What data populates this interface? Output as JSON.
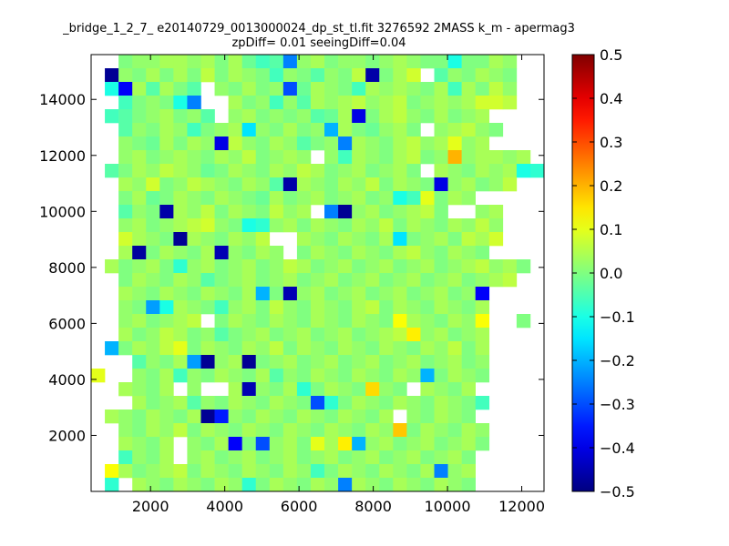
{
  "chart_data": {
    "type": "heatmap",
    "title": "_bridge_1_2_7_ e20140729_0013000024_dp_st_tl.fit 3276592 2MASS k_m - apermag3",
    "subtitle": "zpDiff= 0.01 seeingDiff=0.04",
    "xlabel": "",
    "ylabel": "",
    "x_ticks": [
      2000,
      4000,
      6000,
      8000,
      10000,
      12000
    ],
    "y_ticks": [
      2000,
      4000,
      6000,
      8000,
      10000,
      12000,
      14000
    ],
    "xlim": [
      400,
      12600
    ],
    "ylim": [
      0,
      15600
    ],
    "grid": false,
    "colorbar": {
      "range": [
        -0.5,
        0.5
      ],
      "ticks": [
        -0.5,
        -0.4,
        -0.3,
        -0.2,
        -0.1,
        0.0,
        0.1,
        0.2,
        0.3,
        0.4,
        0.5
      ],
      "tick_labels": [
        "−0.5",
        "−0.4",
        "−0.3",
        "−0.2",
        "−0.1",
        "0.0",
        "0.1",
        "0.2",
        "0.3",
        "0.4",
        "0.5"
      ],
      "colormap": "jet"
    },
    "grid_bins": {
      "x_edges": [
        400,
        12600
      ],
      "y_edges": [
        0,
        15600
      ],
      "nx": 33,
      "ny": 32
    },
    "rows_note": "rows listed from top (y=15600) to bottom (y=0); null = empty bin",
    "cells": [
      [
        null,
        null,
        0.0,
        0.02,
        0.02,
        0.04,
        0.04,
        0.02,
        0.04,
        0.0,
        0.04,
        -0.02,
        -0.06,
        -0.04,
        -0.25,
        0.02,
        0.04,
        0.0,
        0.02,
        0.02,
        0.0,
        0.02,
        0.04,
        0.02,
        0.0,
        0.0,
        -0.1,
        0.0,
        0.0,
        0.04,
        0.02,
        null,
        null
      ],
      [
        null,
        -0.48,
        0.02,
        0.0,
        0.04,
        0.0,
        0.04,
        0.0,
        0.06,
        0.0,
        0.04,
        0.02,
        0.0,
        -0.06,
        0.02,
        0.0,
        -0.04,
        0.02,
        0.0,
        0.06,
        -0.46,
        0.0,
        0.04,
        0.08,
        null,
        -0.04,
        0.02,
        0.0,
        0.04,
        0.02,
        0.0,
        null,
        null
      ],
      [
        null,
        -0.1,
        -0.38,
        0.04,
        -0.04,
        0.04,
        0.0,
        -0.04,
        null,
        0.02,
        0.0,
        0.04,
        0.0,
        0.02,
        -0.3,
        -0.02,
        0.04,
        0.02,
        0.0,
        -0.06,
        0.04,
        0.02,
        0.04,
        0.02,
        0.0,
        0.04,
        -0.06,
        0.04,
        0.0,
        0.06,
        0.02,
        null,
        null
      ],
      [
        null,
        null,
        -0.06,
        0.0,
        0.02,
        0.0,
        -0.1,
        -0.25,
        null,
        null,
        0.04,
        0.0,
        0.02,
        -0.06,
        0.02,
        -0.04,
        0.04,
        0.02,
        0.04,
        0.06,
        0.02,
        0.04,
        0.06,
        0.0,
        0.02,
        0.04,
        0.02,
        0.04,
        0.08,
        0.08,
        0.06,
        null,
        null
      ],
      [
        null,
        -0.06,
        -0.04,
        0.0,
        0.02,
        0.04,
        0.0,
        0.02,
        -0.04,
        null,
        0.02,
        0.04,
        0.0,
        0.02,
        0.0,
        0.02,
        -0.04,
        -0.02,
        0.04,
        -0.4,
        0.0,
        0.04,
        0.06,
        0.02,
        0.0,
        0.04,
        0.0,
        0.02,
        0.04,
        null,
        null,
        null,
        null
      ],
      [
        null,
        null,
        -0.04,
        0.02,
        0.0,
        0.04,
        0.02,
        -0.06,
        0.0,
        0.02,
        0.04,
        -0.15,
        0.02,
        0.0,
        0.04,
        0.0,
        0.02,
        -0.2,
        0.04,
        0.0,
        -0.02,
        0.02,
        0.04,
        0.0,
        null,
        0.02,
        0.04,
        0.06,
        0.02,
        0.0,
        null,
        null,
        null
      ],
      [
        null,
        null,
        0.02,
        0.0,
        -0.02,
        0.04,
        0.0,
        0.04,
        0.02,
        -0.4,
        0.06,
        0.02,
        0.0,
        0.04,
        0.02,
        -0.04,
        0.0,
        0.02,
        -0.25,
        0.04,
        0.02,
        0.0,
        0.04,
        0.06,
        0.02,
        0.04,
        0.1,
        0.02,
        0.04,
        null,
        null,
        null,
        null
      ],
      [
        null,
        null,
        0.02,
        0.04,
        0.0,
        0.02,
        0.04,
        0.02,
        0.0,
        0.04,
        0.02,
        0.06,
        0.0,
        0.02,
        0.04,
        0.02,
        null,
        0.02,
        -0.06,
        0.04,
        0.02,
        0.0,
        0.04,
        0.06,
        0.0,
        0.02,
        0.2,
        0.02,
        0.04,
        0.04,
        0.02,
        0.04,
        null
      ],
      [
        null,
        -0.04,
        0.0,
        0.04,
        0.02,
        0.06,
        0.04,
        0.02,
        -0.02,
        0.0,
        0.04,
        0.02,
        0.0,
        0.04,
        0.02,
        0.06,
        0.04,
        0.0,
        0.02,
        0.04,
        0.0,
        0.02,
        0.04,
        0.0,
        null,
        0.04,
        0.02,
        0.0,
        0.04,
        0.02,
        0.04,
        -0.1,
        -0.08
      ],
      [
        null,
        null,
        0.04,
        0.02,
        0.08,
        0.0,
        0.02,
        0.06,
        0.04,
        0.02,
        0.0,
        0.04,
        0.02,
        -0.04,
        -0.46,
        0.04,
        0.02,
        0.0,
        0.04,
        0.02,
        0.06,
        0.0,
        0.04,
        0.02,
        0.0,
        -0.4,
        0.02,
        0.04,
        0.0,
        0.02,
        0.06,
        null,
        null
      ],
      [
        null,
        null,
        0.0,
        0.04,
        -0.02,
        0.0,
        0.04,
        0.02,
        0.0,
        0.04,
        0.02,
        0.0,
        -0.02,
        0.04,
        0.0,
        0.02,
        0.04,
        0.0,
        0.02,
        0.04,
        0.0,
        0.02,
        -0.1,
        -0.06,
        0.1,
        0.0,
        0.04,
        0.02,
        null,
        null,
        null,
        null,
        null
      ],
      [
        null,
        null,
        -0.04,
        0.02,
        0.0,
        -0.46,
        0.04,
        0.02,
        0.06,
        0.0,
        0.04,
        0.02,
        0.0,
        0.06,
        0.02,
        0.04,
        null,
        -0.25,
        -0.48,
        0.02,
        0.04,
        0.0,
        0.02,
        0.04,
        0.06,
        0.0,
        null,
        null,
        0.02,
        0.04,
        null,
        null,
        null
      ],
      [
        null,
        null,
        0.02,
        0.04,
        0.0,
        0.02,
        0.04,
        0.06,
        0.08,
        0.02,
        0.0,
        -0.1,
        -0.08,
        0.02,
        0.04,
        0.0,
        0.04,
        0.02,
        0.0,
        0.04,
        0.02,
        0.06,
        0.0,
        0.04,
        0.02,
        0.0,
        0.04,
        0.02,
        0.06,
        0.02,
        null,
        null,
        null
      ],
      [
        null,
        null,
        0.08,
        0.04,
        0.02,
        0.0,
        -0.48,
        0.04,
        0.02,
        0.0,
        0.04,
        0.02,
        0.06,
        null,
        null,
        0.04,
        0.02,
        0.0,
        0.04,
        0.02,
        0.0,
        0.04,
        -0.15,
        0.0,
        0.02,
        0.04,
        0.0,
        0.06,
        0.04,
        0.08,
        null,
        null,
        null
      ],
      [
        null,
        null,
        0.04,
        -0.47,
        0.0,
        0.04,
        0.02,
        0.0,
        0.04,
        -0.45,
        0.02,
        0.0,
        0.04,
        0.02,
        null,
        0.0,
        0.04,
        0.02,
        0.0,
        0.04,
        0.02,
        0.0,
        0.04,
        0.06,
        0.02,
        0.0,
        0.04,
        0.02,
        0.0,
        null,
        null,
        null,
        null
      ],
      [
        null,
        0.04,
        0.0,
        0.02,
        0.04,
        0.0,
        -0.08,
        0.02,
        0.04,
        0.0,
        0.02,
        0.04,
        0.0,
        0.02,
        0.06,
        0.04,
        0.0,
        0.02,
        0.04,
        0.0,
        0.02,
        0.04,
        0.0,
        0.02,
        0.04,
        0.0,
        0.02,
        0.04,
        0.06,
        0.02,
        0.04,
        0.0,
        null
      ],
      [
        null,
        null,
        0.0,
        0.04,
        0.02,
        0.0,
        0.04,
        0.02,
        -0.04,
        0.0,
        0.02,
        0.04,
        0.0,
        0.02,
        0.04,
        0.0,
        0.02,
        0.04,
        0.0,
        0.02,
        0.04,
        0.0,
        0.02,
        0.04,
        0.0,
        0.02,
        0.04,
        0.0,
        0.02,
        0.04,
        0.06,
        null,
        null
      ],
      [
        null,
        null,
        0.04,
        0.02,
        0.0,
        0.04,
        0.02,
        0.0,
        0.04,
        0.02,
        0.0,
        0.04,
        -0.2,
        0.0,
        -0.45,
        0.02,
        0.04,
        0.0,
        0.02,
        0.04,
        0.0,
        0.02,
        0.04,
        0.0,
        0.02,
        0.04,
        0.0,
        0.02,
        -0.38,
        null,
        null,
        null,
        null
      ],
      [
        null,
        null,
        0.02,
        0.0,
        -0.22,
        -0.1,
        0.04,
        0.02,
        0.0,
        -0.06,
        0.02,
        0.04,
        0.0,
        0.06,
        0.02,
        0.0,
        0.04,
        0.02,
        0.0,
        0.04,
        0.06,
        0.0,
        0.04,
        0.02,
        0.0,
        0.04,
        0.02,
        0.0,
        0.04,
        null,
        null,
        null,
        null
      ],
      [
        null,
        null,
        0.02,
        0.04,
        0.0,
        0.02,
        0.04,
        0.06,
        null,
        0.0,
        0.04,
        0.02,
        0.0,
        0.04,
        0.02,
        0.0,
        0.04,
        0.02,
        0.0,
        0.04,
        0.02,
        0.0,
        0.12,
        0.04,
        0.02,
        0.0,
        0.04,
        0.02,
        0.12,
        null,
        null,
        0.0,
        null
      ],
      [
        null,
        null,
        0.04,
        0.0,
        0.02,
        0.06,
        0.04,
        0.0,
        0.02,
        -0.04,
        0.0,
        0.02,
        0.04,
        0.0,
        0.02,
        0.04,
        0.0,
        0.02,
        0.04,
        0.0,
        0.02,
        0.04,
        0.06,
        0.14,
        0.02,
        0.04,
        0.0,
        0.02,
        0.04,
        null,
        null,
        null,
        null
      ],
      [
        null,
        -0.2,
        0.0,
        0.04,
        0.02,
        0.06,
        0.1,
        0.0,
        0.04,
        0.02,
        0.0,
        0.04,
        0.02,
        0.06,
        0.0,
        0.04,
        0.02,
        0.0,
        0.04,
        0.02,
        0.0,
        0.04,
        0.02,
        0.0,
        0.04,
        0.02,
        0.06,
        0.0,
        0.04,
        null,
        null,
        null,
        null
      ],
      [
        null,
        null,
        null,
        -0.04,
        0.02,
        0.0,
        0.04,
        -0.22,
        -0.48,
        0.02,
        0.04,
        -0.48,
        0.0,
        0.02,
        0.04,
        0.0,
        0.02,
        0.04,
        0.0,
        0.02,
        0.04,
        0.0,
        0.02,
        0.04,
        0.0,
        0.02,
        0.04,
        0.0,
        0.02,
        null,
        null,
        null,
        null
      ],
      [
        0.1,
        null,
        null,
        0.02,
        0.0,
        0.04,
        -0.06,
        0.02,
        0.0,
        0.04,
        0.02,
        0.0,
        0.04,
        -0.04,
        0.02,
        0.0,
        0.04,
        0.02,
        0.0,
        0.04,
        0.02,
        0.0,
        0.04,
        0.02,
        -0.2,
        0.0,
        0.04,
        0.02,
        0.0,
        null,
        null,
        null,
        null
      ],
      [
        null,
        null,
        0.04,
        0.02,
        0.0,
        0.04,
        null,
        0.02,
        null,
        null,
        0.04,
        -0.45,
        0.02,
        0.0,
        0.04,
        -0.08,
        0.0,
        0.04,
        0.02,
        0.0,
        0.16,
        0.02,
        0.0,
        null,
        0.04,
        0.02,
        0.0,
        0.04,
        null,
        null,
        null,
        null,
        null
      ],
      [
        null,
        null,
        null,
        0.04,
        0.0,
        0.02,
        0.04,
        -0.04,
        0.02,
        0.0,
        0.04,
        0.02,
        0.0,
        0.04,
        0.02,
        0.0,
        -0.3,
        -0.08,
        0.0,
        0.04,
        0.02,
        0.0,
        0.04,
        0.02,
        0.0,
        0.04,
        0.02,
        0.0,
        -0.06,
        null,
        null,
        null,
        null
      ],
      [
        null,
        0.04,
        0.02,
        0.0,
        0.04,
        0.02,
        0.0,
        0.04,
        -0.48,
        -0.35,
        0.02,
        0.0,
        0.04,
        0.02,
        0.0,
        0.04,
        0.02,
        0.0,
        0.04,
        0.02,
        0.0,
        0.04,
        null,
        0.02,
        0.0,
        0.04,
        0.02,
        0.0,
        null,
        null,
        null,
        null,
        null
      ],
      [
        null,
        null,
        0.02,
        0.0,
        0.04,
        0.02,
        0.06,
        0.0,
        0.04,
        0.02,
        0.0,
        0.04,
        0.02,
        0.0,
        0.04,
        0.02,
        0.0,
        0.04,
        0.02,
        0.0,
        0.04,
        0.02,
        0.18,
        0.0,
        0.04,
        0.02,
        0.0,
        0.04,
        0.02,
        null,
        null,
        null,
        null
      ],
      [
        null,
        null,
        0.04,
        0.02,
        0.0,
        0.04,
        null,
        0.02,
        0.0,
        0.04,
        -0.38,
        0.0,
        -0.3,
        0.02,
        0.04,
        0.0,
        0.1,
        0.04,
        0.14,
        -0.2,
        0.02,
        0.04,
        0.0,
        0.02,
        0.04,
        0.0,
        0.02,
        0.04,
        0.0,
        null,
        null,
        null,
        null
      ],
      [
        null,
        null,
        -0.06,
        0.02,
        0.0,
        0.04,
        null,
        0.02,
        0.04,
        0.0,
        0.02,
        0.04,
        0.0,
        0.02,
        0.04,
        0.0,
        0.02,
        0.04,
        0.0,
        0.02,
        0.04,
        0.0,
        0.02,
        0.04,
        0.0,
        0.02,
        0.04,
        0.0,
        null,
        null,
        null,
        null,
        null
      ],
      [
        null,
        0.12,
        0.04,
        0.0,
        0.02,
        0.04,
        0.06,
        0.0,
        0.04,
        0.02,
        0.0,
        0.04,
        0.02,
        0.0,
        0.04,
        0.02,
        -0.06,
        0.0,
        0.04,
        0.02,
        0.0,
        0.04,
        0.02,
        0.0,
        0.04,
        -0.25,
        0.02,
        0.04,
        null,
        null,
        null,
        null,
        null
      ],
      [
        null,
        -0.08,
        null,
        0.04,
        0.02,
        0.0,
        0.04,
        0.02,
        0.0,
        0.04,
        0.02,
        -0.08,
        0.0,
        0.04,
        0.02,
        0.0,
        0.04,
        0.02,
        -0.25,
        0.04,
        0.02,
        0.0,
        0.04,
        0.02,
        0.0,
        0.04,
        0.02,
        0.0,
        null,
        null,
        null,
        null,
        null
      ]
    ]
  }
}
